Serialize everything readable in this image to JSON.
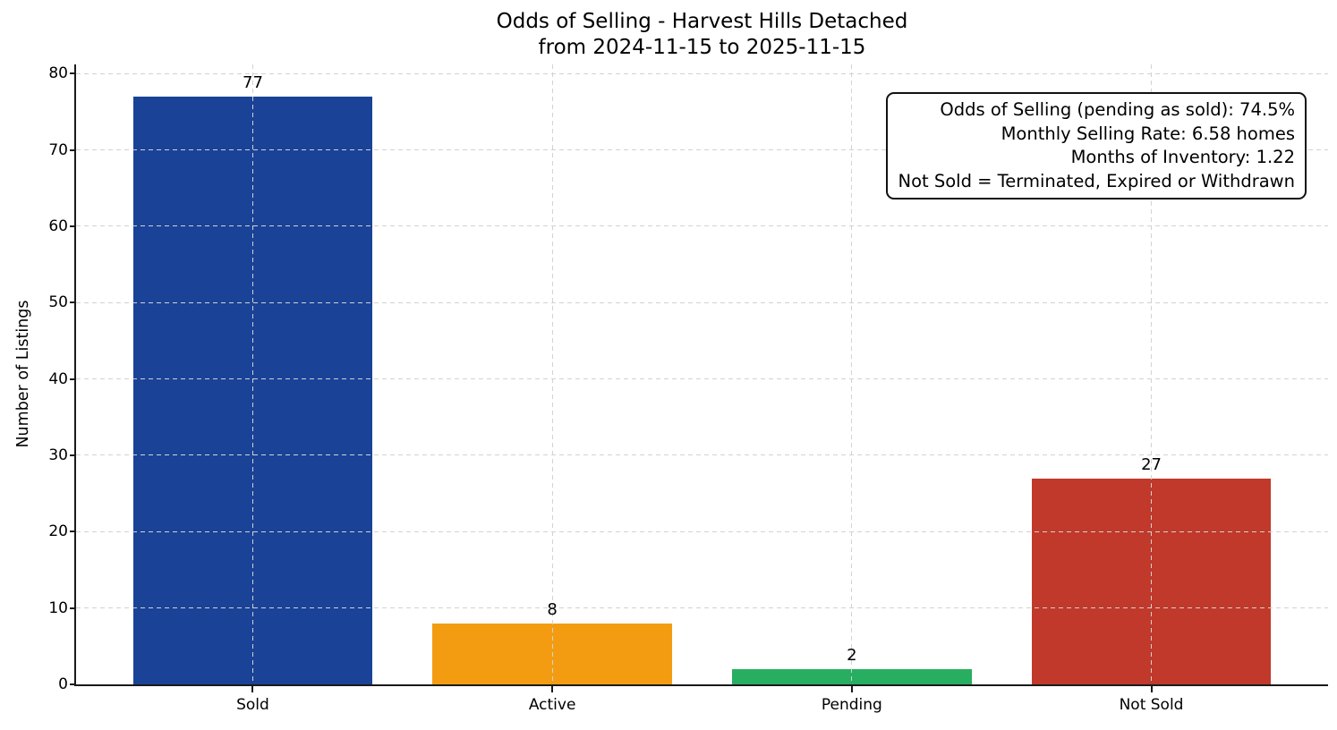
{
  "chart_data": {
    "type": "bar",
    "title": "Odds of Selling - Harvest Hills Detached",
    "subtitle": "from 2024-11-15 to 2025-11-15",
    "ylabel": "Number of Listings",
    "xlabel": "",
    "categories": [
      "Sold",
      "Active",
      "Pending",
      "Not Sold"
    ],
    "values": [
      77,
      8,
      2,
      27
    ],
    "bar_colors": [
      "#1a4397",
      "#f39c12",
      "#27ae60",
      "#c0392b"
    ],
    "value_labels": [
      "77",
      "8",
      "2",
      "27"
    ],
    "ylim": [
      0,
      81.2
    ],
    "yticks": [
      0,
      10,
      20,
      30,
      40,
      50,
      60,
      70,
      80
    ],
    "grid": {
      "axis": "both",
      "style": "dashed",
      "color": "#d2d2d2"
    },
    "legend": "none",
    "annotation_box": {
      "position": "top-right",
      "lines": [
        "Odds of Selling (pending as sold): 74.5%",
        "Monthly Selling Rate: 6.58 homes",
        "Months of Inventory: 1.22",
        "Not Sold = Terminated, Expired or Withdrawn"
      ]
    }
  }
}
